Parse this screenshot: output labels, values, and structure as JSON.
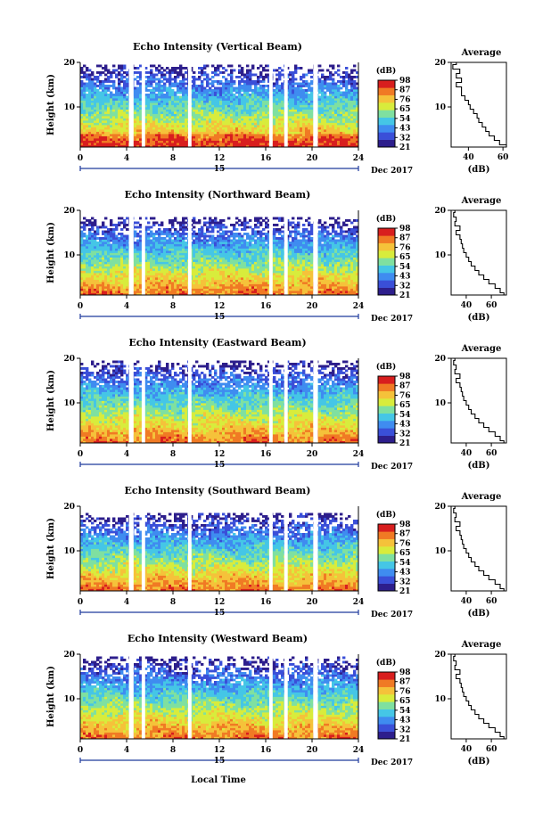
{
  "colors": {
    "scale": [
      "#2d1e8c",
      "#3a4fd8",
      "#3f8cf0",
      "#45c6e6",
      "#7fe0a0",
      "#d8ec3c",
      "#f5c23a",
      "#f07a24",
      "#d81e1e"
    ],
    "background": "#ffffff",
    "gap": "#ffffff",
    "line": "#000000",
    "date_axis": "#1f3a9c"
  },
  "xlabel_bottom": "Local Time",
  "chart_data": [
    {
      "type": "heatmap",
      "title": "Echo Intensity (Vertical Beam)",
      "ylabel": "Height (km)",
      "ylim": [
        1,
        20
      ],
      "yticks": [
        10,
        20
      ],
      "xlim": [
        0,
        24
      ],
      "xticks": [
        0,
        4,
        8,
        12,
        16,
        20,
        24
      ],
      "date_tick": "15",
      "date_label": "Dec 2017",
      "colorbar_unit": "(dB)",
      "colorbar_ticks": [
        21,
        32,
        43,
        54,
        65,
        76,
        87,
        98
      ],
      "gaps_hours": [
        [
          4.2,
          4.6
        ],
        [
          5.3,
          5.6
        ],
        [
          9.3,
          9.6
        ],
        [
          16.3,
          16.6
        ],
        [
          17.6,
          17.9
        ],
        [
          20.1,
          20.5
        ]
      ],
      "echo_top_km": 19,
      "profile": {
        "title": "Average",
        "xlabel": "(dB)",
        "xticks": [
          40,
          60
        ],
        "xlim": [
          30,
          62
        ],
        "ylim": [
          1,
          20
        ],
        "yticks": [
          10,
          20
        ],
        "height_km": [
          1,
          2,
          3,
          4,
          5,
          6,
          7,
          8,
          9,
          10,
          11,
          12,
          13,
          14,
          15,
          16,
          17,
          18,
          19,
          20
        ],
        "value_db": [
          62,
          58,
          55,
          52,
          50,
          48,
          46,
          45,
          43,
          41,
          40,
          38,
          36,
          36,
          33,
          36,
          33,
          35,
          31,
          33
        ]
      }
    },
    {
      "type": "heatmap",
      "title": "Echo Intensity (Northward Beam)",
      "ylabel": "Height (km)",
      "ylim": [
        1,
        20
      ],
      "yticks": [
        10,
        20
      ],
      "xlim": [
        0,
        24
      ],
      "xticks": [
        0,
        4,
        8,
        12,
        16,
        20,
        24
      ],
      "date_tick": "15",
      "date_label": "Dec 2017",
      "colorbar_unit": "(dB)",
      "colorbar_ticks": [
        21,
        32,
        43,
        54,
        65,
        76,
        87,
        98
      ],
      "gaps_hours": [
        [
          4.2,
          4.6
        ],
        [
          5.3,
          5.6
        ],
        [
          9.3,
          9.6
        ],
        [
          16.3,
          16.6
        ],
        [
          17.6,
          17.9
        ],
        [
          20.1,
          20.5
        ]
      ],
      "echo_top_km": 18,
      "profile": {
        "title": "Average",
        "xlabel": "(dB)",
        "xticks": [
          40,
          60
        ],
        "xlim": [
          28,
          72
        ],
        "ylim": [
          1,
          20
        ],
        "yticks": [
          10,
          20
        ],
        "height_km": [
          1,
          2,
          3,
          4,
          5,
          6,
          7,
          8,
          9,
          10,
          11,
          12,
          13,
          14,
          15,
          16,
          17,
          18,
          19,
          20
        ],
        "value_db": [
          70,
          67,
          63,
          58,
          54,
          50,
          47,
          44,
          42,
          40,
          38,
          37,
          36,
          35,
          32,
          35,
          31,
          32,
          30,
          31
        ]
      }
    },
    {
      "type": "heatmap",
      "title": "Echo Intensity (Eastward Beam)",
      "ylabel": "Height (km)",
      "ylim": [
        1,
        20
      ],
      "yticks": [
        10,
        20
      ],
      "xlim": [
        0,
        24
      ],
      "xticks": [
        0,
        4,
        8,
        12,
        16,
        20,
        24
      ],
      "date_tick": "15",
      "date_label": "Dec 2017",
      "colorbar_unit": "(dB)",
      "colorbar_ticks": [
        21,
        32,
        43,
        54,
        65,
        76,
        87,
        98
      ],
      "gaps_hours": [
        [
          4.2,
          4.6
        ],
        [
          5.3,
          5.6
        ],
        [
          9.3,
          9.6
        ],
        [
          16.3,
          16.6
        ],
        [
          17.6,
          17.9
        ],
        [
          20.1,
          20.5
        ]
      ],
      "echo_top_km": 19,
      "profile": {
        "title": "Average",
        "xlabel": "(dB)",
        "xticks": [
          40,
          60
        ],
        "xlim": [
          28,
          72
        ],
        "ylim": [
          1,
          20
        ],
        "yticks": [
          10,
          20
        ],
        "height_km": [
          1,
          2,
          3,
          4,
          5,
          6,
          7,
          8,
          9,
          10,
          11,
          12,
          13,
          14,
          15,
          16,
          17,
          18,
          19,
          20
        ],
        "value_db": [
          70,
          67,
          63,
          58,
          54,
          50,
          47,
          44,
          42,
          40,
          38,
          37,
          36,
          35,
          32,
          35,
          31,
          32,
          30,
          31
        ]
      }
    },
    {
      "type": "heatmap",
      "title": "Echo Intensity (Southward Beam)",
      "ylabel": "Height (km)",
      "ylim": [
        1,
        20
      ],
      "yticks": [
        10,
        20
      ],
      "xlim": [
        0,
        24
      ],
      "xticks": [
        0,
        4,
        8,
        12,
        16,
        20,
        24
      ],
      "date_tick": "15",
      "date_label": "Dec 2017",
      "colorbar_unit": "(dB)",
      "colorbar_ticks": [
        21,
        32,
        43,
        54,
        65,
        76,
        87,
        98
      ],
      "gaps_hours": [
        [
          4.2,
          4.6
        ],
        [
          5.3,
          5.6
        ],
        [
          9.3,
          9.6
        ],
        [
          16.3,
          16.6
        ],
        [
          17.6,
          17.9
        ],
        [
          20.1,
          20.5
        ]
      ],
      "echo_top_km": 18,
      "profile": {
        "title": "Average",
        "xlabel": "(dB)",
        "xticks": [
          40,
          60
        ],
        "xlim": [
          28,
          72
        ],
        "ylim": [
          1,
          20
        ],
        "yticks": [
          10,
          20
        ],
        "height_km": [
          1,
          2,
          3,
          4,
          5,
          6,
          7,
          8,
          9,
          10,
          11,
          12,
          13,
          14,
          15,
          16,
          17,
          18,
          19,
          20
        ],
        "value_db": [
          70,
          67,
          63,
          58,
          54,
          50,
          47,
          44,
          42,
          40,
          38,
          37,
          36,
          35,
          32,
          35,
          31,
          32,
          30,
          31
        ]
      }
    },
    {
      "type": "heatmap",
      "title": "Echo Intensity (Westward Beam)",
      "ylabel": "Height (km)",
      "ylim": [
        1,
        20
      ],
      "yticks": [
        10,
        20
      ],
      "xlim": [
        0,
        24
      ],
      "xticks": [
        0,
        4,
        8,
        12,
        16,
        20,
        24
      ],
      "date_tick": "15",
      "date_label": "Dec 2017",
      "colorbar_unit": "(dB)",
      "colorbar_ticks": [
        21,
        32,
        43,
        54,
        65,
        76,
        87,
        98
      ],
      "gaps_hours": [
        [
          4.2,
          4.6
        ],
        [
          5.3,
          5.6
        ],
        [
          9.3,
          9.6
        ],
        [
          16.3,
          16.6
        ],
        [
          17.6,
          17.9
        ],
        [
          20.1,
          20.5
        ]
      ],
      "echo_top_km": 19,
      "profile": {
        "title": "Average",
        "xlabel": "(dB)",
        "xticks": [
          40,
          60
        ],
        "xlim": [
          28,
          72
        ],
        "ylim": [
          1,
          20
        ],
        "yticks": [
          10,
          20
        ],
        "height_km": [
          1,
          2,
          3,
          4,
          5,
          6,
          7,
          8,
          9,
          10,
          11,
          12,
          13,
          14,
          15,
          16,
          17,
          18,
          19,
          20
        ],
        "value_db": [
          70,
          67,
          63,
          58,
          54,
          50,
          47,
          44,
          42,
          40,
          38,
          37,
          36,
          35,
          32,
          35,
          31,
          32,
          30,
          31
        ]
      }
    }
  ]
}
